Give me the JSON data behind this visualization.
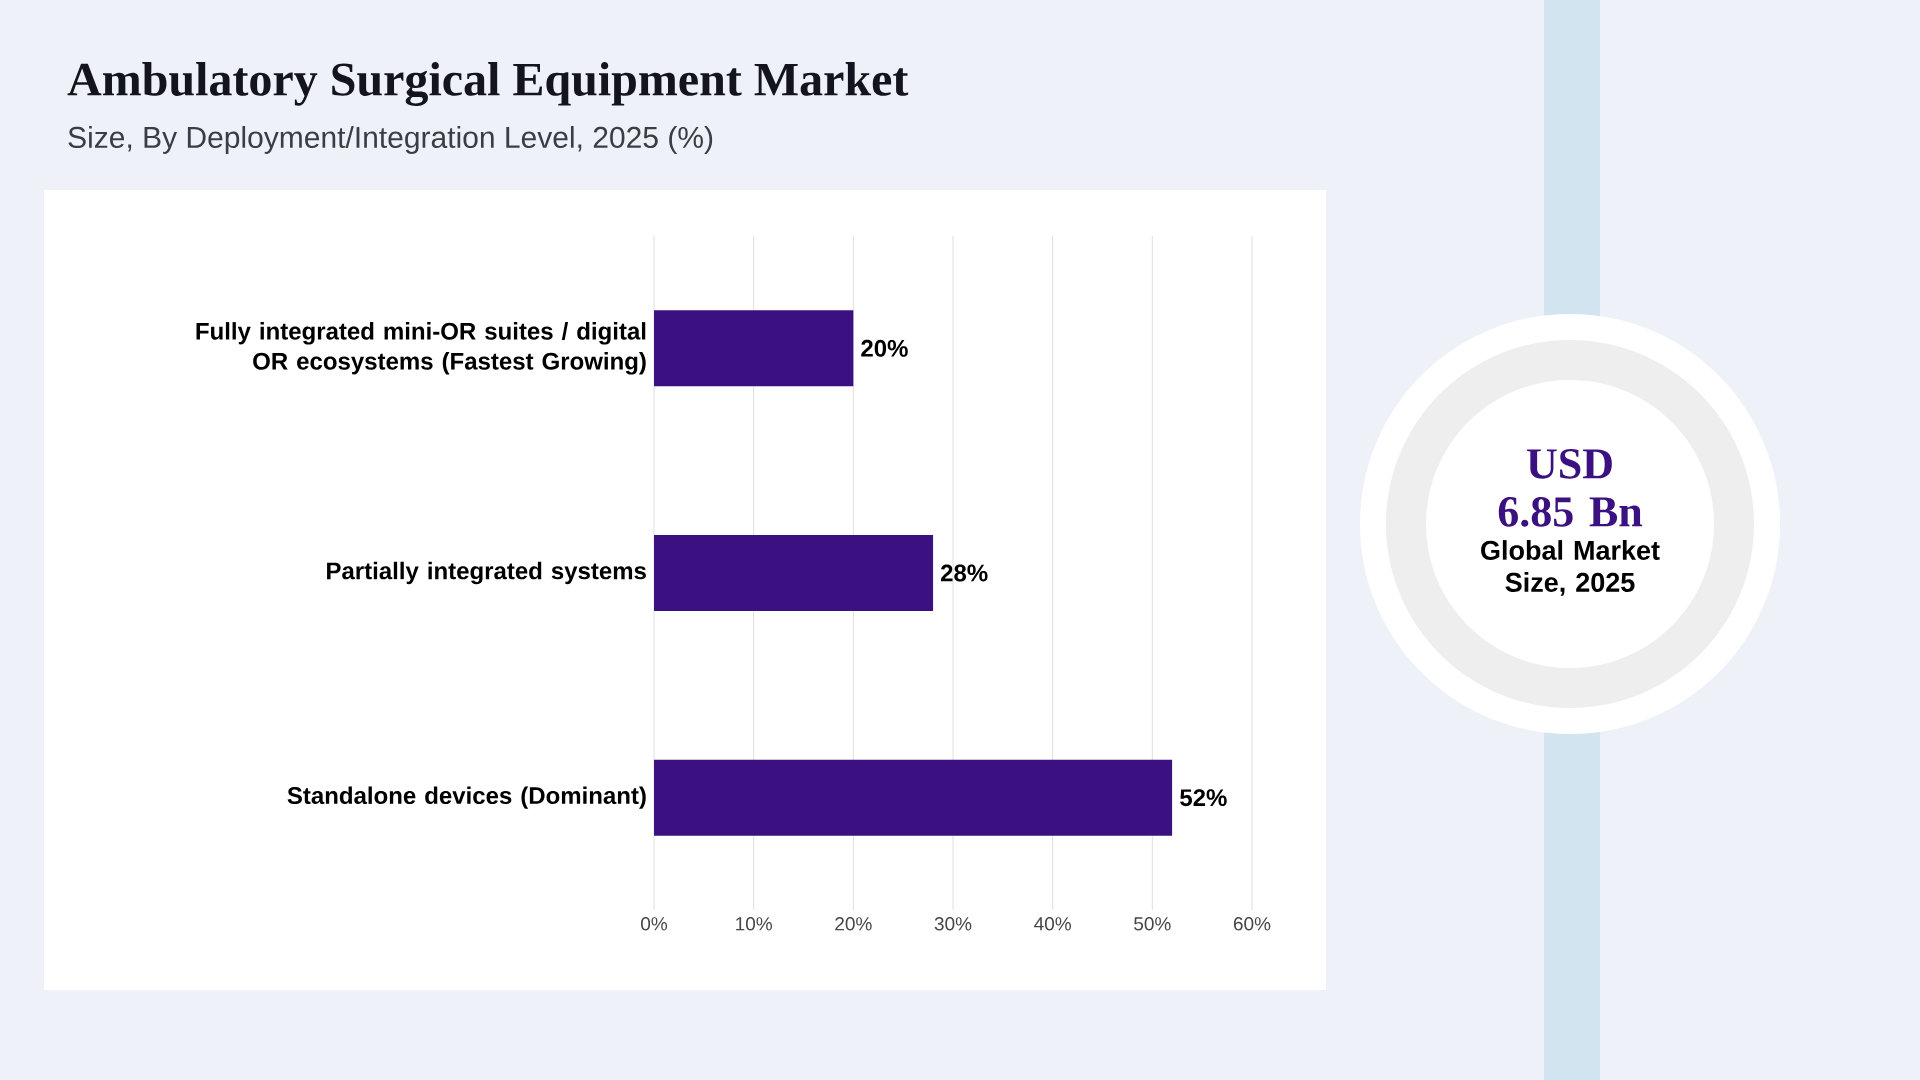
{
  "chart_data": [
    {
      "type": "bar",
      "title": "Ambulatory Surgical Equipment Market",
      "subtitle": "Size, By Deployment/Integration Level, 2025 (%)",
      "orientation": "horizontal",
      "categories": [
        "Fully integrated mini-OR suites / digital OR ecosystems (Fastest Growing)",
        "Partially integrated systems",
        "Standalone devices (Dominant)"
      ],
      "values": [
        20,
        28,
        52
      ],
      "value_labels": [
        "20%",
        "28%",
        "52%"
      ],
      "color": "#3b1181",
      "xlim": [
        0,
        60
      ],
      "xticks": [
        {
          "value": 0,
          "label": "0%"
        },
        {
          "value": 10,
          "label": "10%"
        },
        {
          "value": 20,
          "label": "20%"
        },
        {
          "value": 30,
          "label": "30%"
        },
        {
          "value": 40,
          "label": "40%"
        },
        {
          "value": 50,
          "label": "50%"
        },
        {
          "value": 60,
          "label": "60%"
        }
      ],
      "grid": "x"
    },
    {
      "type": "other",
      "annotations": [
        "USD 6.85 Bn",
        "Global Market Size, 2025"
      ]
    }
  ]
}
